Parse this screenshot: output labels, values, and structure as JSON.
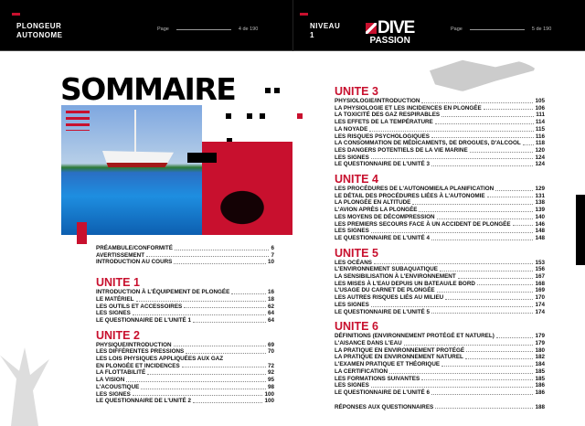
{
  "header": {
    "left_title": [
      "PLONGEUR",
      "AUTONOME"
    ],
    "left_page_label": "Page",
    "left_page": "4 de 190",
    "right_title": [
      "NIVEAU",
      "1"
    ],
    "logo": [
      "DIVE",
      "PASSION"
    ],
    "right_page_label": "Page",
    "right_page": "5 de 190"
  },
  "title": "SOMMAIRE",
  "colors": {
    "accent": "#c8102e"
  },
  "intro": [
    [
      "PRÉAMBULE/CONFORMITÉ",
      "6"
    ],
    [
      "AVERTISSEMENT",
      "7"
    ],
    [
      "INTRODUCTION AU COURS",
      "10"
    ]
  ],
  "units_left": [
    {
      "title": "UNITE 1",
      "entries": [
        [
          "INTRODUCTION À L'ÉQUIPEMENT DE PLONGÉE",
          "16"
        ],
        [
          "LE MATÉRIEL",
          "18"
        ],
        [
          "LES OUTILS ET ACCESSOIRES",
          "62"
        ],
        [
          "LES SIGNES",
          "64"
        ],
        [
          "LE QUESTIONNAIRE DE L'UNITÉ 1",
          "64"
        ]
      ]
    },
    {
      "title": "UNITE 2",
      "entries": [
        [
          "PHYSIQUE/INTRODUCTION",
          "69"
        ],
        [
          "LES DIFFÉRENTES PRESSIONS",
          "70"
        ],
        [
          "LES LOIS PHYSIQUES APPLIQUÉES AUX GAZ",
          ""
        ],
        [
          "EN PLONGÉE ET INCIDENCES",
          "72"
        ],
        [
          "LA FLOTTABILITÉ",
          "92"
        ],
        [
          "LA VISION",
          "95"
        ],
        [
          "L'ACOUSTIQUE",
          "98"
        ],
        [
          "LES SIGNES",
          "100"
        ],
        [
          "LE QUESTIONNAIRE DE L'UNITÉ 2",
          "100"
        ]
      ]
    }
  ],
  "units_right": [
    {
      "title": "UNITE 3",
      "entries": [
        [
          "PHYSIOLOGIE/INTRODUCTION",
          "105"
        ],
        [
          "LA PHYSIOLOGIE ET LES INCIDENCES EN PLONGÉE",
          "106"
        ],
        [
          "LA TOXICITÉ DES GAZ RESPIRABLES",
          "111"
        ],
        [
          "LES EFFETS DE LA TEMPÉRATURE",
          "114"
        ],
        [
          "LA NOYADE",
          "115"
        ],
        [
          "LES RISQUES PSYCHOLOGIQUES",
          "116"
        ],
        [
          "LA CONSOMMATION DE MÉDICAMENTS, DE DROGUES, D'ALCOOL",
          "118"
        ],
        [
          "LES DANGERS POTENTIELS DE LA VIE MARINE",
          "120"
        ],
        [
          "LES SIGNES",
          "124"
        ],
        [
          "LE QUESTIONNAIRE DE L'UNITÉ 3",
          "124"
        ]
      ]
    },
    {
      "title": "UNITE 4",
      "entries": [
        [
          "LES PROCÉDURES DE L'AUTONOMIE/LA PLANIFICATION",
          "129"
        ],
        [
          "LE DÉTAIL DES PROCÉDURES LIÉES À L'AUTONOMIE",
          "131"
        ],
        [
          "LA PLONGÉE EN ALTITUDE",
          "138"
        ],
        [
          "L'AVION APRÈS LA PLONGÉE",
          "139"
        ],
        [
          "LES MOYENS DE DÉCOMPRESSION",
          "140"
        ],
        [
          "LES PREMIERS SECOURS FACE À UN ACCIDENT DE PLONGÉE",
          "146"
        ],
        [
          "LES SIGNES",
          "148"
        ],
        [
          "LE QUESTIONNAIRE DE L'UNITÉ 4",
          "148"
        ]
      ]
    },
    {
      "title": "UNITE 5",
      "entries": [
        [
          "LES OCÉANS",
          "153"
        ],
        [
          "L'ENVIRONNEMENT SUBAQUATIQUE",
          "156"
        ],
        [
          "LA SENSIBILISATION À L'ENVIRONNEMENT",
          "167"
        ],
        [
          "LES MISES À L'EAU DEPUIS UN BATEAU/LE BORD",
          "168"
        ],
        [
          "L'USAGE DU CARNET DE PLONGÉE",
          "169"
        ],
        [
          "LES AUTRES RISQUES LIÉS AU MILIEU",
          "170"
        ],
        [
          "LES SIGNES",
          "174"
        ],
        [
          "LE QUESTIONNAIRE DE L'UNITÉ 5",
          "174"
        ]
      ]
    },
    {
      "title": "UNITE 6",
      "entries": [
        [
          "DÉFINITIONS (ENVIRONNEMENT PROTÉGÉ ET NATUREL)",
          "179"
        ],
        [
          "L'AISANCE DANS L'EAU",
          "179"
        ],
        [
          "LA PRATIQUE EN ENVIRONNEMENT PROTÉGÉ",
          "180"
        ],
        [
          "LA PRATIQUE EN ENVIRONNEMENT NATUREL",
          "182"
        ],
        [
          "L'EXAMEN PRATIQUE ET THÉORIQUE",
          "184"
        ],
        [
          "LA CERTIFICATION",
          "185"
        ],
        [
          "LES FORMATIONS SUIVANTES",
          "185"
        ],
        [
          "LES SIGNES",
          "186"
        ],
        [
          "LE QUESTIONNAIRE DE L'UNITÉ 6",
          "186"
        ]
      ]
    }
  ],
  "answers": [
    "RÉPONSES AUX QUESTIONNAIRES",
    "188"
  ]
}
